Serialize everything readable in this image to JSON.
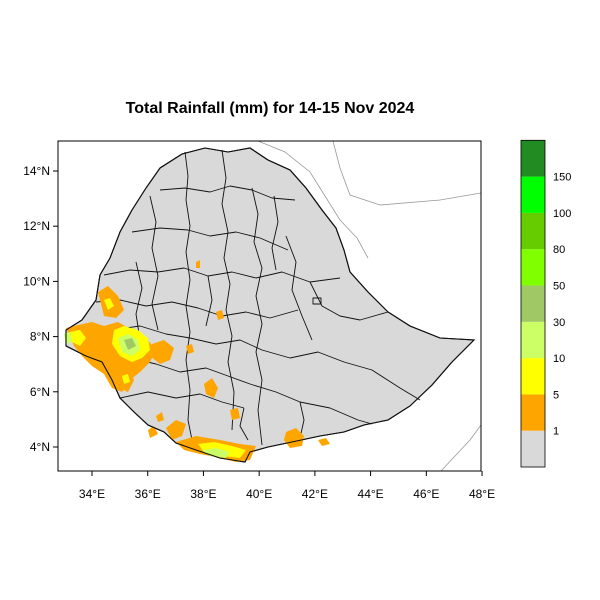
{
  "title": "Total Rainfall (mm) for 14-15 Nov 2024",
  "axes": {
    "lon_ticks": [
      {
        "value": 34,
        "label": "34°E"
      },
      {
        "value": 36,
        "label": "36°E"
      },
      {
        "value": 38,
        "label": "38°E"
      },
      {
        "value": 40,
        "label": "40°E"
      },
      {
        "value": 42,
        "label": "42°E"
      },
      {
        "value": 44,
        "label": "44°E"
      },
      {
        "value": 46,
        "label": "46°E"
      },
      {
        "value": 48,
        "label": "48°E"
      }
    ],
    "lat_ticks": [
      {
        "value": 14,
        "label": "14°N"
      },
      {
        "value": 12,
        "label": "12°N"
      },
      {
        "value": 10,
        "label": "10°N"
      },
      {
        "value": 8,
        "label": "8°N"
      },
      {
        "value": 6,
        "label": "6°N"
      },
      {
        "value": 4,
        "label": "4°N"
      }
    ]
  },
  "legend": {
    "classes": [
      {
        "label": "1",
        "color": "#d9d9d9"
      },
      {
        "label": "5",
        "color": "#ffa500"
      },
      {
        "label": "10",
        "color": "#ffff00"
      },
      {
        "label": "30",
        "color": "#ccff66"
      },
      {
        "label": "50",
        "color": "#a0c864"
      },
      {
        "label": "80",
        "color": "#80ff00"
      },
      {
        "label": "100",
        "color": "#66cc00"
      },
      {
        "label": "150",
        "color": "#00ff00"
      },
      {
        "label": "",
        "color": "#228b22"
      }
    ]
  },
  "colors": {
    "land": "#d9d9d9",
    "admin_lines": "#111111",
    "neighbor_lines": "#999999"
  }
}
